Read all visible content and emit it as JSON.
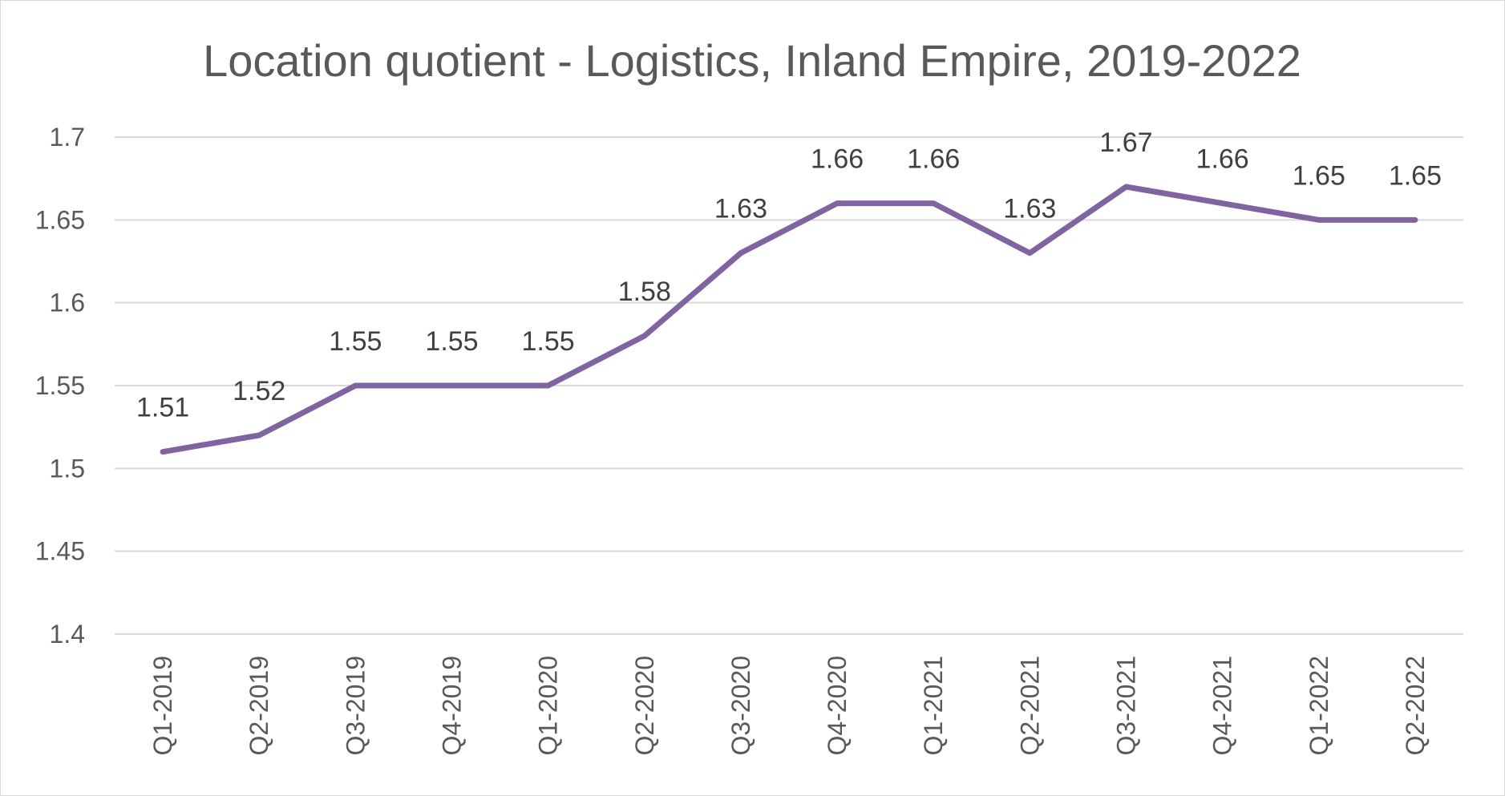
{
  "chart_data": {
    "type": "line",
    "title": "Location quotient - Logistics, Inland Empire, 2019-2022",
    "xlabel": "",
    "ylabel": "",
    "categories": [
      "Q1-2019",
      "Q2-2019",
      "Q3-2019",
      "Q4-2019",
      "Q1-2020",
      "Q2-2020",
      "Q3-2020",
      "Q4-2020",
      "Q1-2021",
      "Q2-2021",
      "Q3-2021",
      "Q4-2021",
      "Q1-2022",
      "Q2-2022"
    ],
    "series": [
      {
        "values": [
          1.51,
          1.52,
          1.55,
          1.55,
          1.55,
          1.58,
          1.63,
          1.66,
          1.66,
          1.63,
          1.67,
          1.66,
          1.65,
          1.65
        ],
        "labels": [
          "1.51",
          "1.52",
          "1.55",
          "1.55",
          "1.55",
          "1.58",
          "1.63",
          "1.66",
          "1.66",
          "1.63",
          "1.67",
          "1.66",
          "1.65",
          "1.65"
        ],
        "color": "#8064a2"
      }
    ],
    "ylim": [
      1.4,
      1.7
    ],
    "yticks": [
      1.4,
      1.45,
      1.5,
      1.55,
      1.6,
      1.65,
      1.7
    ],
    "ytick_labels": [
      "1.4",
      "1.45",
      "1.5",
      "1.55",
      "1.6",
      "1.65",
      "1.7"
    ],
    "grid": true,
    "legend": "none",
    "data_labels": "above"
  }
}
